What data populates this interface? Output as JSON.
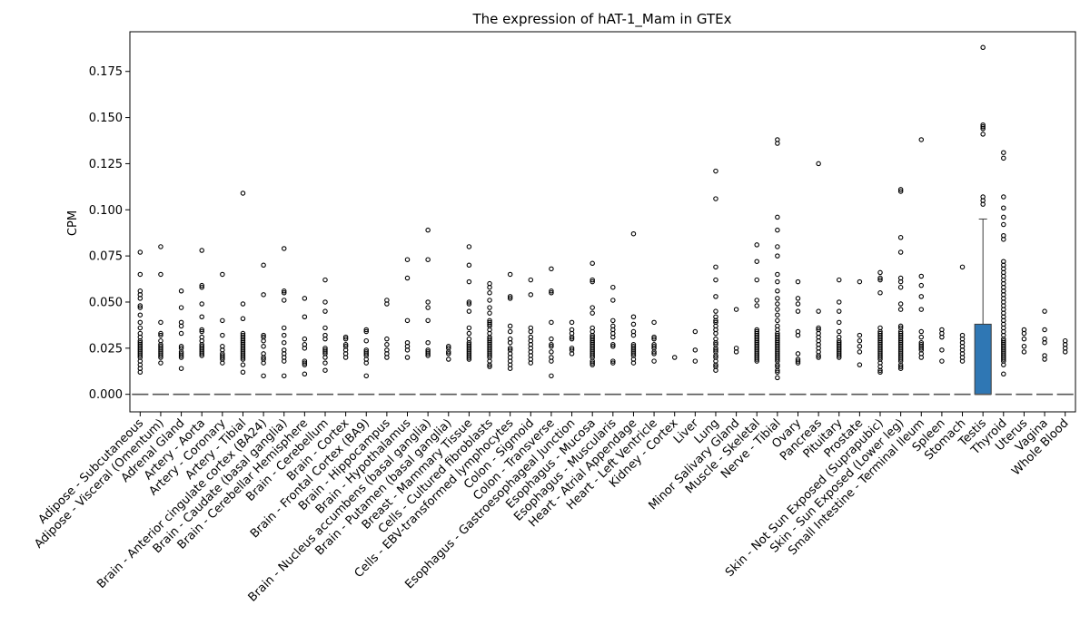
{
  "chart_data": {
    "type": "box",
    "title": "The expression of hAT-1_Mam in GTEx",
    "xlabel": "",
    "ylabel": "CPM",
    "ylim": [
      -0.0095,
      0.1965
    ],
    "yticks": [
      "0.000",
      "0.025",
      "0.050",
      "0.075",
      "0.100",
      "0.125",
      "0.150",
      "0.175"
    ],
    "box_color": "#2f77b4",
    "median_color": "#555555",
    "categories": [
      "Adipose - Subcutaneous",
      "Adipose - Visceral (Omentum)",
      "Adrenal Gland",
      "Artery - Aorta",
      "Artery - Coronary",
      "Artery - Tibial",
      "Brain - Anterior cingulate cortex (BA24)",
      "Brain - Caudate (basal ganglia)",
      "Brain - Cerebellar Hemisphere",
      "Brain - Cerebellum",
      "Brain - Cortex",
      "Brain - Frontal Cortex (BA9)",
      "Brain - Hippocampus",
      "Brain - Hypothalamus",
      "Brain - Nucleus accumbens (basal ganglia)",
      "Brain - Putamen (basal ganglia)",
      "Breast - Mammary Tissue",
      "Cells - Cultured fibroblasts",
      "Cells - EBV-transformed lymphocytes",
      "Colon - Sigmoid",
      "Colon - Transverse",
      "Esophagus - Gastroesophageal Junction",
      "Esophagus - Mucosa",
      "Esophagus - Muscularis",
      "Heart - Atrial Appendage",
      "Heart - Left Ventricle",
      "Kidney - Cortex",
      "Liver",
      "Lung",
      "Minor Salivary Gland",
      "Muscle - Skeletal",
      "Nerve - Tibial",
      "Ovary",
      "Pancreas",
      "Pituitary",
      "Prostate",
      "Skin - Not Sun Exposed (Suprapubic)",
      "Skin - Sun Exposed (Lower leg)",
      "Small Intestine - Terminal Ileum",
      "Spleen",
      "Stomach",
      "Testis",
      "Thyroid",
      "Uterus",
      "Vagina",
      "Whole Blood"
    ],
    "boxes": [
      {
        "q1": 0,
        "median": 0,
        "q3": 0,
        "whisker_low": 0,
        "whisker_high": 0,
        "outliers": [
          0.077,
          0.065,
          0.056,
          0.054,
          0.052,
          0.048,
          0.047,
          0.043,
          0.039,
          0.036,
          0.033,
          0.031,
          0.029,
          0.028,
          0.027,
          0.026,
          0.025,
          0.024,
          0.023,
          0.022,
          0.021,
          0.02,
          0.018,
          0.016,
          0.014,
          0.012
        ]
      },
      {
        "q1": 0,
        "median": 0,
        "q3": 0,
        "whisker_low": 0,
        "whisker_high": 0,
        "outliers": [
          0.08,
          0.065,
          0.039,
          0.033,
          0.032,
          0.029,
          0.027,
          0.026,
          0.025,
          0.024,
          0.023,
          0.022,
          0.021,
          0.02,
          0.017
        ]
      },
      {
        "q1": 0,
        "median": 0,
        "q3": 0,
        "whisker_low": 0,
        "whisker_high": 0,
        "outliers": [
          0.056,
          0.047,
          0.039,
          0.037,
          0.033,
          0.026,
          0.025,
          0.023,
          0.022,
          0.021,
          0.02,
          0.014
        ]
      },
      {
        "q1": 0,
        "median": 0,
        "q3": 0,
        "whisker_low": 0,
        "whisker_high": 0,
        "outliers": [
          0.078,
          0.059,
          0.058,
          0.049,
          0.042,
          0.035,
          0.034,
          0.031,
          0.029,
          0.027,
          0.026,
          0.025,
          0.024,
          0.023,
          0.022,
          0.021
        ]
      },
      {
        "q1": 0,
        "median": 0,
        "q3": 0,
        "whisker_low": 0,
        "whisker_high": 0,
        "outliers": [
          0.065,
          0.04,
          0.032,
          0.026,
          0.024,
          0.022,
          0.021,
          0.02,
          0.019,
          0.017
        ]
      },
      {
        "q1": 0,
        "median": 0,
        "q3": 0,
        "whisker_low": 0,
        "whisker_high": 0,
        "outliers": [
          0.109,
          0.049,
          0.041,
          0.033,
          0.032,
          0.031,
          0.03,
          0.029,
          0.028,
          0.027,
          0.026,
          0.025,
          0.024,
          0.023,
          0.022,
          0.021,
          0.02,
          0.019,
          0.016,
          0.012
        ]
      },
      {
        "q1": 0,
        "median": 0,
        "q3": 0,
        "whisker_low": 0,
        "whisker_high": 0,
        "outliers": [
          0.07,
          0.054,
          0.032,
          0.031,
          0.029,
          0.026,
          0.022,
          0.02,
          0.019,
          0.017,
          0.01
        ]
      },
      {
        "q1": 0,
        "median": 0,
        "q3": 0,
        "whisker_low": 0,
        "whisker_high": 0,
        "outliers": [
          0.079,
          0.056,
          0.055,
          0.051,
          0.036,
          0.032,
          0.028,
          0.024,
          0.022,
          0.02,
          0.018,
          0.01
        ]
      },
      {
        "q1": 0,
        "median": 0,
        "q3": 0,
        "whisker_low": 0,
        "whisker_high": 0,
        "outliers": [
          0.052,
          0.042,
          0.03,
          0.027,
          0.025,
          0.018,
          0.017,
          0.016,
          0.011
        ]
      },
      {
        "q1": 0,
        "median": 0,
        "q3": 0,
        "whisker_low": 0,
        "whisker_high": 0,
        "outliers": [
          0.062,
          0.05,
          0.045,
          0.036,
          0.032,
          0.03,
          0.025,
          0.024,
          0.023,
          0.022,
          0.02,
          0.017,
          0.013
        ]
      },
      {
        "q1": 0,
        "median": 0,
        "q3": 0,
        "whisker_low": 0,
        "whisker_high": 0,
        "outliers": [
          0.031,
          0.03,
          0.027,
          0.026,
          0.024,
          0.022,
          0.02
        ]
      },
      {
        "q1": 0,
        "median": 0,
        "q3": 0,
        "whisker_low": 0,
        "whisker_high": 0,
        "outliers": [
          0.035,
          0.034,
          0.029,
          0.024,
          0.023,
          0.022,
          0.021,
          0.019,
          0.017,
          0.01
        ]
      },
      {
        "q1": 0,
        "median": 0,
        "q3": 0,
        "whisker_low": 0,
        "whisker_high": 0,
        "outliers": [
          0.051,
          0.049,
          0.03,
          0.027,
          0.024,
          0.022,
          0.02
        ]
      },
      {
        "q1": 0,
        "median": 0,
        "q3": 0,
        "whisker_low": 0,
        "whisker_high": 0,
        "outliers": [
          0.073,
          0.063,
          0.04,
          0.028,
          0.026,
          0.024,
          0.02
        ]
      },
      {
        "q1": 0,
        "median": 0,
        "q3": 0,
        "whisker_low": 0,
        "whisker_high": 0,
        "outliers": [
          0.089,
          0.073,
          0.05,
          0.047,
          0.04,
          0.028,
          0.024,
          0.023,
          0.022,
          0.021
        ]
      },
      {
        "q1": 0,
        "median": 0,
        "q3": 0,
        "whisker_low": 0,
        "whisker_high": 0,
        "outliers": [
          0.026,
          0.025,
          0.023,
          0.022,
          0.019
        ]
      },
      {
        "q1": 0,
        "median": 0,
        "q3": 0,
        "whisker_low": 0,
        "whisker_high": 0,
        "outliers": [
          0.08,
          0.07,
          0.061,
          0.05,
          0.049,
          0.045,
          0.036,
          0.033,
          0.03,
          0.028,
          0.027,
          0.026,
          0.025,
          0.024,
          0.023,
          0.022,
          0.021,
          0.02,
          0.019
        ]
      },
      {
        "q1": 0,
        "median": 0,
        "q3": 0,
        "whisker_low": 0,
        "whisker_high": 0,
        "outliers": [
          0.06,
          0.058,
          0.055,
          0.051,
          0.047,
          0.044,
          0.04,
          0.039,
          0.038,
          0.037,
          0.035,
          0.033,
          0.031,
          0.03,
          0.029,
          0.028,
          0.027,
          0.026,
          0.025,
          0.024,
          0.023,
          0.022,
          0.021,
          0.02,
          0.018,
          0.016,
          0.015
        ]
      },
      {
        "q1": 0,
        "median": 0,
        "q3": 0,
        "whisker_low": 0,
        "whisker_high": 0,
        "outliers": [
          0.065,
          0.053,
          0.052,
          0.037,
          0.034,
          0.03,
          0.028,
          0.025,
          0.024,
          0.022,
          0.02,
          0.018,
          0.016,
          0.014
        ]
      },
      {
        "q1": 0,
        "median": 0,
        "q3": 0,
        "whisker_low": 0,
        "whisker_high": 0,
        "outliers": [
          0.062,
          0.054,
          0.036,
          0.034,
          0.031,
          0.029,
          0.027,
          0.025,
          0.023,
          0.021,
          0.019,
          0.017
        ]
      },
      {
        "q1": 0,
        "median": 0,
        "q3": 0,
        "whisker_low": 0,
        "whisker_high": 0,
        "outliers": [
          0.068,
          0.056,
          0.055,
          0.039,
          0.03,
          0.027,
          0.026,
          0.023,
          0.02,
          0.018,
          0.01
        ]
      },
      {
        "q1": 0,
        "median": 0,
        "q3": 0,
        "whisker_low": 0,
        "whisker_high": 0,
        "outliers": [
          0.039,
          0.035,
          0.033,
          0.031,
          0.03,
          0.025,
          0.024,
          0.022
        ]
      },
      {
        "q1": 0,
        "median": 0,
        "q3": 0,
        "whisker_low": 0,
        "whisker_high": 0,
        "outliers": [
          0.071,
          0.062,
          0.061,
          0.047,
          0.044,
          0.036,
          0.034,
          0.032,
          0.031,
          0.03,
          0.029,
          0.028,
          0.027,
          0.026,
          0.025,
          0.024,
          0.023,
          0.022,
          0.021,
          0.02,
          0.018,
          0.017,
          0.016
        ]
      },
      {
        "q1": 0,
        "median": 0,
        "q3": 0,
        "whisker_low": 0,
        "whisker_high": 0,
        "outliers": [
          0.058,
          0.051,
          0.04,
          0.037,
          0.035,
          0.033,
          0.031,
          0.027,
          0.026,
          0.018,
          0.017
        ]
      },
      {
        "q1": 0,
        "median": 0,
        "q3": 0,
        "whisker_low": 0,
        "whisker_high": 0,
        "outliers": [
          0.087,
          0.042,
          0.038,
          0.034,
          0.032,
          0.027,
          0.026,
          0.025,
          0.024,
          0.023,
          0.022,
          0.021,
          0.019,
          0.017
        ]
      },
      {
        "q1": 0,
        "median": 0,
        "q3": 0,
        "whisker_low": 0,
        "whisker_high": 0,
        "outliers": [
          0.039,
          0.031,
          0.03,
          0.027,
          0.026,
          0.025,
          0.023,
          0.022,
          0.018
        ]
      },
      {
        "q1": 0,
        "median": 0,
        "q3": 0,
        "whisker_low": 0,
        "whisker_high": 0,
        "outliers": [
          0.02
        ]
      },
      {
        "q1": 0,
        "median": 0,
        "q3": 0,
        "whisker_low": 0,
        "whisker_high": 0,
        "outliers": [
          0.034,
          0.024,
          0.018
        ]
      },
      {
        "q1": 0,
        "median": 0,
        "q3": 0,
        "whisker_low": 0,
        "whisker_high": 0,
        "outliers": [
          0.121,
          0.106,
          0.069,
          0.062,
          0.053,
          0.045,
          0.042,
          0.04,
          0.039,
          0.037,
          0.035,
          0.033,
          0.03,
          0.028,
          0.027,
          0.025,
          0.024,
          0.023,
          0.021,
          0.02,
          0.018,
          0.016,
          0.015,
          0.013
        ]
      },
      {
        "q1": 0,
        "median": 0,
        "q3": 0,
        "whisker_low": 0,
        "whisker_high": 0,
        "outliers": [
          0.046,
          0.025,
          0.023
        ]
      },
      {
        "q1": 0,
        "median": 0,
        "q3": 0,
        "whisker_low": 0,
        "whisker_high": 0,
        "outliers": [
          0.081,
          0.072,
          0.062,
          0.051,
          0.048,
          0.035,
          0.034,
          0.033,
          0.032,
          0.031,
          0.03,
          0.029,
          0.028,
          0.027,
          0.026,
          0.025,
          0.024,
          0.023,
          0.022,
          0.021,
          0.02,
          0.019,
          0.018
        ]
      },
      {
        "q1": 0,
        "median": 0,
        "q3": 0,
        "whisker_low": 0,
        "whisker_high": 0,
        "outliers": [
          0.138,
          0.136,
          0.096,
          0.089,
          0.08,
          0.075,
          0.065,
          0.061,
          0.056,
          0.052,
          0.049,
          0.046,
          0.043,
          0.04,
          0.037,
          0.035,
          0.033,
          0.032,
          0.031,
          0.03,
          0.029,
          0.028,
          0.027,
          0.026,
          0.025,
          0.024,
          0.023,
          0.022,
          0.021,
          0.02,
          0.019,
          0.018,
          0.016,
          0.015,
          0.013,
          0.012,
          0.009
        ]
      },
      {
        "q1": 0,
        "median": 0,
        "q3": 0,
        "whisker_low": 0,
        "whisker_high": 0,
        "outliers": [
          0.061,
          0.052,
          0.049,
          0.045,
          0.034,
          0.032,
          0.022,
          0.019,
          0.018,
          0.017
        ]
      },
      {
        "q1": 0,
        "median": 0,
        "q3": 0,
        "whisker_low": 0,
        "whisker_high": 0,
        "outliers": [
          0.125,
          0.045,
          0.036,
          0.035,
          0.033,
          0.031,
          0.029,
          0.027,
          0.025,
          0.023,
          0.021,
          0.02
        ]
      },
      {
        "q1": 0,
        "median": 0,
        "q3": 0,
        "whisker_low": 0,
        "whisker_high": 0,
        "outliers": [
          0.062,
          0.05,
          0.045,
          0.039,
          0.034,
          0.031,
          0.029,
          0.028,
          0.027,
          0.026,
          0.025,
          0.024,
          0.023,
          0.022,
          0.021,
          0.02
        ]
      },
      {
        "q1": 0,
        "median": 0,
        "q3": 0,
        "whisker_low": 0,
        "whisker_high": 0,
        "outliers": [
          0.061,
          0.032,
          0.029,
          0.026,
          0.023,
          0.016
        ]
      },
      {
        "q1": 0,
        "median": 0,
        "q3": 0,
        "whisker_low": 0,
        "whisker_high": 0,
        "outliers": [
          0.066,
          0.063,
          0.062,
          0.055,
          0.036,
          0.034,
          0.033,
          0.032,
          0.031,
          0.03,
          0.029,
          0.028,
          0.027,
          0.026,
          0.025,
          0.024,
          0.023,
          0.022,
          0.021,
          0.02,
          0.019,
          0.017,
          0.015,
          0.013,
          0.012
        ]
      },
      {
        "q1": 0,
        "median": 0,
        "q3": 0,
        "whisker_low": 0,
        "whisker_high": 0,
        "outliers": [
          0.111,
          0.11,
          0.085,
          0.077,
          0.063,
          0.061,
          0.058,
          0.049,
          0.046,
          0.037,
          0.036,
          0.034,
          0.033,
          0.032,
          0.031,
          0.03,
          0.029,
          0.028,
          0.027,
          0.026,
          0.025,
          0.024,
          0.023,
          0.022,
          0.021,
          0.02,
          0.019,
          0.018,
          0.016,
          0.015,
          0.014
        ]
      },
      {
        "q1": 0,
        "median": 0,
        "q3": 0,
        "whisker_low": 0,
        "whisker_high": 0,
        "outliers": [
          0.138,
          0.064,
          0.059,
          0.053,
          0.046,
          0.034,
          0.031,
          0.028,
          0.027,
          0.026,
          0.025,
          0.024,
          0.022,
          0.02
        ]
      },
      {
        "q1": 0,
        "median": 0,
        "q3": 0,
        "whisker_low": 0,
        "whisker_high": 0,
        "outliers": [
          0.035,
          0.033,
          0.031,
          0.024,
          0.018
        ]
      },
      {
        "q1": 0,
        "median": 0,
        "q3": 0,
        "whisker_low": 0,
        "whisker_high": 0,
        "outliers": [
          0.069,
          0.032,
          0.03,
          0.028,
          0.026,
          0.024,
          0.022,
          0.02,
          0.018
        ]
      },
      {
        "q1": 0,
        "median": 0.0,
        "q3": 0.038,
        "whisker_low": 0,
        "whisker_high": 0.095,
        "outliers": [
          0.188,
          0.146,
          0.145,
          0.144,
          0.141,
          0.107,
          0.105,
          0.103
        ]
      },
      {
        "q1": 0,
        "median": 0,
        "q3": 0,
        "whisker_low": 0,
        "whisker_high": 0,
        "outliers": [
          0.131,
          0.128,
          0.107,
          0.101,
          0.096,
          0.092,
          0.086,
          0.084,
          0.072,
          0.07,
          0.068,
          0.066,
          0.064,
          0.062,
          0.06,
          0.058,
          0.056,
          0.054,
          0.052,
          0.05,
          0.048,
          0.046,
          0.044,
          0.042,
          0.04,
          0.038,
          0.036,
          0.034,
          0.032,
          0.03,
          0.029,
          0.028,
          0.027,
          0.026,
          0.025,
          0.024,
          0.023,
          0.022,
          0.021,
          0.02,
          0.019,
          0.018,
          0.016,
          0.011
        ]
      },
      {
        "q1": 0,
        "median": 0,
        "q3": 0,
        "whisker_low": 0,
        "whisker_high": 0,
        "outliers": [
          0.035,
          0.033,
          0.03,
          0.026,
          0.023
        ]
      },
      {
        "q1": 0,
        "median": 0,
        "q3": 0,
        "whisker_low": 0,
        "whisker_high": 0,
        "outliers": [
          0.045,
          0.035,
          0.03,
          0.028,
          0.021,
          0.019
        ]
      },
      {
        "q1": 0,
        "median": 0,
        "q3": 0,
        "whisker_low": 0,
        "whisker_high": 0,
        "outliers": [
          0.029,
          0.027,
          0.025,
          0.023
        ]
      }
    ]
  }
}
